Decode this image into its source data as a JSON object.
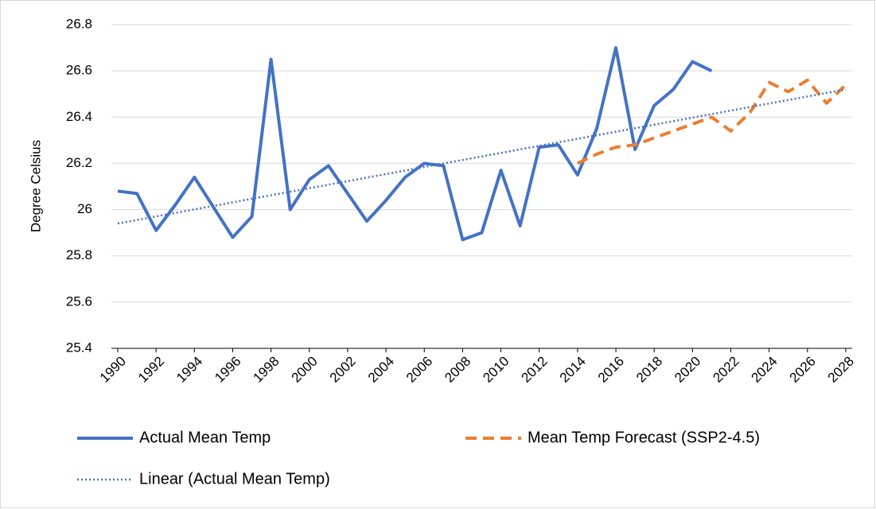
{
  "chart_data": {
    "type": "line",
    "y_label": "Degree Celsius",
    "xlim": [
      1990,
      2028
    ],
    "xticks": [
      1990,
      1992,
      1994,
      1996,
      1998,
      2000,
      2002,
      2004,
      2006,
      2008,
      2010,
      2012,
      2014,
      2016,
      2018,
      2020,
      2022,
      2024,
      2026,
      2028
    ],
    "ylim": [
      25.4,
      26.8
    ],
    "yticks": [
      25.4,
      25.6,
      25.8,
      26,
      26.2,
      26.4,
      26.6,
      26.8
    ],
    "grid": true,
    "legend": "bottom",
    "series": [
      {
        "name": "Actual Mean Temp",
        "color": "#4472c4",
        "style": "solid",
        "x": [
          1990,
          1991,
          1992,
          1993,
          1994,
          1995,
          1996,
          1997,
          1998,
          1999,
          2000,
          2001,
          2002,
          2003,
          2004,
          2005,
          2006,
          2007,
          2008,
          2009,
          2010,
          2011,
          2012,
          2013,
          2014,
          2015,
          2016,
          2017,
          2018,
          2019,
          2020,
          2021
        ],
        "values": [
          26.08,
          26.07,
          25.91,
          26.02,
          26.14,
          26.01,
          25.88,
          25.97,
          26.65,
          26.0,
          26.13,
          26.19,
          26.07,
          25.95,
          26.04,
          26.14,
          26.2,
          26.19,
          25.87,
          25.9,
          26.17,
          25.93,
          26.27,
          26.28,
          26.15,
          26.35,
          26.7,
          26.26,
          26.45,
          26.52,
          26.64,
          26.6
        ]
      },
      {
        "name": "Mean Temp Forecast (SSP2-4.5)",
        "color": "#ed7d31",
        "style": "dashed",
        "x": [
          2014,
          2015,
          2016,
          2017,
          2018,
          2019,
          2020,
          2021,
          2022,
          2023,
          2024,
          2025,
          2026,
          2027,
          2028
        ],
        "values": [
          26.2,
          26.24,
          26.27,
          26.28,
          26.31,
          26.34,
          26.37,
          26.4,
          26.34,
          26.42,
          26.55,
          26.51,
          26.56,
          26.46,
          26.54
        ]
      },
      {
        "name": "Linear (Actual Mean Temp)",
        "color": "#4472c4",
        "style": "dotted",
        "x": [
          1990,
          2028
        ],
        "values": [
          25.94,
          26.52
        ]
      }
    ]
  }
}
